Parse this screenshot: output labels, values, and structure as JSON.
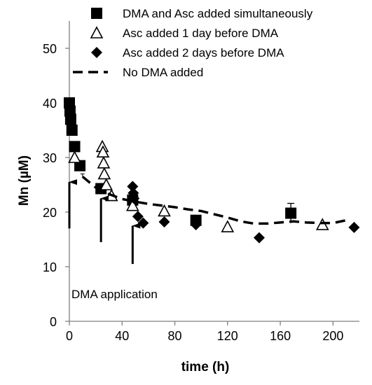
{
  "chart_data": {
    "type": "scatter",
    "title": "",
    "xlabel": "time (h)",
    "ylabel": "Mn (µM)",
    "xlim": [
      0,
      220
    ],
    "ylim": [
      0,
      55
    ],
    "x_ticks": [
      "0",
      "40",
      "80",
      "120",
      "160",
      "200"
    ],
    "y_ticks": [
      "0",
      "10",
      "20",
      "30",
      "40",
      "50"
    ],
    "grid": false,
    "legend_position": "top",
    "series": [
      {
        "name": "DMA and Asc added simultaneously",
        "marker": "square",
        "color": "#000000",
        "x": [
          0,
          0.5,
          1,
          2,
          4,
          8,
          24,
          48,
          96,
          168
        ],
        "y": [
          40,
          38.5,
          37,
          35,
          32,
          28.5,
          24.3,
          22.2,
          18.5,
          19.8
        ],
        "error": [
          0,
          0,
          0,
          0,
          0,
          0,
          0,
          0,
          0,
          1.8
        ]
      },
      {
        "name": "Asc added 1 day before DMA",
        "marker": "triangle-open",
        "color": "#000000",
        "x": [
          4,
          25,
          25.5,
          26,
          26.5,
          28,
          32,
          48,
          72,
          120,
          192
        ],
        "y": [
          30,
          32,
          31,
          29,
          27,
          25,
          23,
          21.2,
          20.2,
          17.3,
          17.7
        ],
        "error": []
      },
      {
        "name": "Asc added 2 days before DMA",
        "marker": "diamond",
        "color": "#000000",
        "x": [
          48,
          48.5,
          49,
          52,
          56,
          72,
          96,
          144,
          216
        ],
        "y": [
          24.7,
          23.5,
          22.5,
          19.2,
          18,
          18.2,
          17.7,
          15.3,
          17.2
        ],
        "error": []
      },
      {
        "name": "No DMA added",
        "marker": "dashed-line",
        "color": "#000000",
        "x": [
          10,
          20,
          30,
          40,
          50,
          60,
          70,
          80,
          90,
          100,
          110,
          120,
          130,
          140,
          150,
          160,
          170,
          180,
          190,
          200,
          210
        ],
        "y": [
          26.5,
          24.5,
          23.3,
          22.4,
          21.9,
          21.5,
          21.2,
          20.9,
          20.5,
          20.2,
          19.6,
          19,
          18.3,
          17.9,
          17.9,
          18.1,
          18.3,
          18.1,
          18,
          18,
          18.5
        ],
        "error": [
          0.5
        ]
      }
    ],
    "annotations": [
      {
        "text": "DMA application",
        "x": 0,
        "y": 5
      },
      {
        "arrow_x": 0,
        "arrow_from_y": 17,
        "arrow_to_y": 25.5
      },
      {
        "arrow_x": 24,
        "arrow_from_y": 14.5,
        "arrow_to_y": 22.5
      },
      {
        "arrow_x": 48,
        "arrow_from_y": 10.5,
        "arrow_to_y": 17.5
      }
    ]
  }
}
